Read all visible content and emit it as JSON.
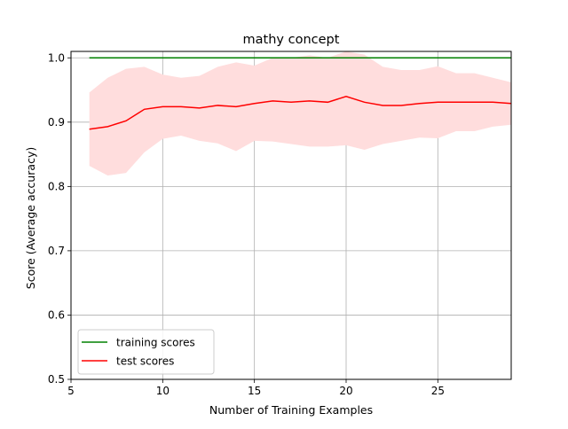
{
  "chart_data": {
    "type": "line",
    "title": "mathy concept",
    "xlabel": "Number of Training Examples",
    "ylabel": "Score (Average accuracy)",
    "xlim": [
      5,
      29
    ],
    "ylim": [
      0.5,
      1.01
    ],
    "xticks": [
      5,
      10,
      15,
      20,
      25
    ],
    "yticks": [
      0.5,
      0.6,
      0.7,
      0.8,
      0.9,
      1.0
    ],
    "xtick_labels": [
      "5",
      "10",
      "15",
      "20",
      "25"
    ],
    "ytick_labels": [
      "0.5",
      "0.6",
      "0.7",
      "0.8",
      "0.9",
      "1.0"
    ],
    "grid": true,
    "legend_position": "lower-left",
    "x": [
      6,
      7,
      8,
      9,
      10,
      11,
      12,
      13,
      14,
      15,
      16,
      17,
      18,
      19,
      20,
      21,
      22,
      23,
      24,
      25,
      26,
      27,
      28,
      29
    ],
    "series": [
      {
        "name": "training scores",
        "color": "#008000",
        "values": [
          1,
          1,
          1,
          1,
          1,
          1,
          1,
          1,
          1,
          1,
          1,
          1,
          1,
          1,
          1,
          1,
          1,
          1,
          1,
          1,
          1,
          1,
          1,
          1
        ]
      },
      {
        "name": "test scores",
        "color": "#ff0000",
        "band_color": "#ffdddd",
        "values": [
          0.889,
          0.893,
          0.902,
          0.92,
          0.924,
          0.924,
          0.922,
          0.926,
          0.924,
          0.929,
          0.933,
          0.931,
          0.933,
          0.931,
          0.94,
          0.931,
          0.926,
          0.926,
          0.929,
          0.931,
          0.931,
          0.931,
          0.931,
          0.929
        ],
        "band_upper": [
          0.946,
          0.969,
          0.983,
          0.986,
          0.974,
          0.969,
          0.972,
          0.986,
          0.993,
          0.988,
          1.0,
          1.0,
          1.004,
          1.0,
          1.01,
          1.005,
          0.986,
          0.981,
          0.981,
          0.987,
          0.976,
          0.976,
          0.969,
          0.962
        ],
        "band_lower": [
          0.832,
          0.817,
          0.821,
          0.853,
          0.874,
          0.879,
          0.871,
          0.867,
          0.855,
          0.871,
          0.87,
          0.866,
          0.862,
          0.862,
          0.864,
          0.857,
          0.866,
          0.871,
          0.876,
          0.875,
          0.886,
          0.886,
          0.893,
          0.896
        ]
      }
    ]
  }
}
